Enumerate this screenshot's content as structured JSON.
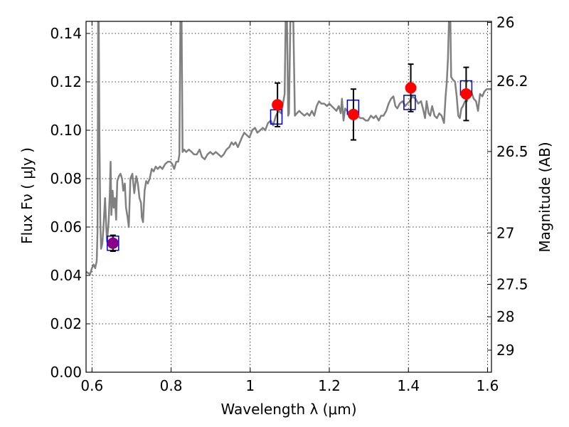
{
  "chart_data": {
    "type": "scatter",
    "xlabel": "Wavelength  λ (μm)",
    "ylabel": "Flux  Fν ( μJy )",
    "ylabel_right": "Magnitude (AB)",
    "xlim": [
      0.585,
      1.61
    ],
    "ylim": [
      0.0,
      0.145
    ],
    "grid": true,
    "x_ticks": [
      0.6,
      0.8,
      1.0,
      1.2,
      1.4,
      1.6
    ],
    "x_tick_labels": [
      "0.6",
      "0.8",
      "1",
      "1.2",
      "1.4",
      "1.6"
    ],
    "y_ticks": [
      0.0,
      0.02,
      0.04,
      0.06,
      0.08,
      0.1,
      0.12,
      0.14
    ],
    "y_tick_labels": [
      "0.00",
      "0.02",
      "0.04",
      "0.06",
      "0.08",
      "0.10",
      "0.12",
      "0.14"
    ],
    "right_ticks": [
      26,
      26.2,
      26.5,
      27,
      27.5,
      28,
      29
    ],
    "right_tick_labels": [
      "26",
      "26.2",
      "26.5",
      "27",
      "27.5",
      "28",
      "29"
    ],
    "series": [
      {
        "style": "line",
        "color": "#808080",
        "points": [
          [
            0.585,
            0.0415
          ],
          [
            0.595,
            0.0405
          ],
          [
            0.6,
            0.043
          ],
          [
            0.604,
            0.0445
          ],
          [
            0.608,
            0.043
          ],
          [
            0.612,
            0.046
          ],
          [
            0.614,
            0.058
          ],
          [
            0.6155,
            0.145
          ],
          [
            0.617,
            0.145
          ],
          [
            0.619,
            0.095
          ],
          [
            0.621,
            0.063
          ],
          [
            0.623,
            0.051
          ],
          [
            0.626,
            0.053
          ],
          [
            0.629,
            0.06
          ],
          [
            0.633,
            0.072
          ],
          [
            0.636,
            0.06
          ],
          [
            0.638,
            0.054
          ],
          [
            0.642,
            0.062
          ],
          [
            0.645,
            0.074
          ],
          [
            0.647,
            0.087
          ],
          [
            0.649,
            0.065
          ],
          [
            0.652,
            0.075
          ],
          [
            0.655,
            0.068
          ],
          [
            0.658,
            0.072
          ],
          [
            0.661,
            0.063
          ],
          [
            0.664,
            0.079
          ],
          [
            0.668,
            0.081
          ],
          [
            0.672,
            0.082
          ],
          [
            0.676,
            0.08
          ],
          [
            0.679,
            0.075
          ],
          [
            0.683,
            0.078
          ],
          [
            0.686,
            0.068
          ],
          [
            0.69,
            0.064
          ],
          [
            0.693,
            0.06
          ],
          [
            0.697,
            0.08
          ],
          [
            0.702,
            0.082
          ],
          [
            0.707,
            0.074
          ],
          [
            0.712,
            0.081
          ],
          [
            0.716,
            0.078
          ],
          [
            0.72,
            0.072
          ],
          [
            0.724,
            0.07
          ],
          [
            0.726,
            0.064
          ],
          [
            0.729,
            0.062
          ],
          [
            0.733,
            0.075
          ],
          [
            0.737,
            0.079
          ],
          [
            0.741,
            0.078
          ],
          [
            0.746,
            0.08
          ],
          [
            0.751,
            0.084
          ],
          [
            0.756,
            0.083
          ],
          [
            0.761,
            0.085
          ],
          [
            0.766,
            0.084
          ],
          [
            0.772,
            0.085
          ],
          [
            0.778,
            0.084
          ],
          [
            0.785,
            0.086
          ],
          [
            0.792,
            0.087
          ],
          [
            0.798,
            0.087
          ],
          [
            0.803,
            0.086
          ],
          [
            0.808,
            0.084
          ],
          [
            0.813,
            0.087
          ],
          [
            0.818,
            0.087
          ],
          [
            0.821,
            0.09
          ],
          [
            0.8235,
            0.145
          ],
          [
            0.8265,
            0.145
          ],
          [
            0.829,
            0.091
          ],
          [
            0.833,
            0.092
          ],
          [
            0.838,
            0.091
          ],
          [
            0.845,
            0.092
          ],
          [
            0.852,
            0.091
          ],
          [
            0.858,
            0.09
          ],
          [
            0.865,
            0.09
          ],
          [
            0.872,
            0.092
          ],
          [
            0.878,
            0.089
          ],
          [
            0.885,
            0.088
          ],
          [
            0.892,
            0.09
          ],
          [
            0.899,
            0.091
          ],
          [
            0.906,
            0.09
          ],
          [
            0.913,
            0.091
          ],
          [
            0.92,
            0.09
          ],
          [
            0.927,
            0.089
          ],
          [
            0.933,
            0.09
          ],
          [
            0.94,
            0.092
          ],
          [
            0.947,
            0.093
          ],
          [
            0.953,
            0.095
          ],
          [
            0.958,
            0.094
          ],
          [
            0.963,
            0.095
          ],
          [
            0.969,
            0.093
          ],
          [
            0.974,
            0.095
          ],
          [
            0.979,
            0.097
          ],
          [
            0.985,
            0.099
          ],
          [
            0.991,
            0.098
          ],
          [
            0.998,
            0.097
          ],
          [
            1.005,
            0.1
          ],
          [
            1.012,
            0.101
          ],
          [
            1.018,
            0.099
          ],
          [
            1.025,
            0.1
          ],
          [
            1.032,
            0.101
          ],
          [
            1.038,
            0.1
          ],
          [
            1.045,
            0.103
          ],
          [
            1.052,
            0.104
          ],
          [
            1.058,
            0.102
          ],
          [
            1.065,
            0.106
          ],
          [
            1.072,
            0.108
          ],
          [
            1.078,
            0.107
          ],
          [
            1.083,
            0.111
          ],
          [
            1.087,
            0.115
          ],
          [
            1.0895,
            0.145
          ],
          [
            1.093,
            0.145
          ],
          [
            1.096,
            0.106
          ],
          [
            1.098,
            0.107
          ],
          [
            1.1015,
            0.145
          ],
          [
            1.106,
            0.145
          ],
          [
            1.109,
            0.145
          ],
          [
            1.113,
            0.106
          ],
          [
            1.118,
            0.107
          ],
          [
            1.124,
            0.108
          ],
          [
            1.13,
            0.107
          ],
          [
            1.137,
            0.106
          ],
          [
            1.144,
            0.107
          ],
          [
            1.15,
            0.106
          ],
          [
            1.156,
            0.108
          ],
          [
            1.162,
            0.106
          ],
          [
            1.168,
            0.11
          ],
          [
            1.174,
            0.112
          ],
          [
            1.18,
            0.111
          ],
          [
            1.187,
            0.111
          ],
          [
            1.194,
            0.11
          ],
          [
            1.2,
            0.111
          ],
          [
            1.206,
            0.11
          ],
          [
            1.212,
            0.109
          ],
          [
            1.218,
            0.108
          ],
          [
            1.224,
            0.11
          ],
          [
            1.229,
            0.107
          ],
          [
            1.232,
            0.113
          ],
          [
            1.236,
            0.104
          ],
          [
            1.24,
            0.109
          ],
          [
            1.245,
            0.108
          ],
          [
            1.252,
            0.107
          ],
          [
            1.258,
            0.108
          ],
          [
            1.265,
            0.107
          ],
          [
            1.272,
            0.106
          ],
          [
            1.278,
            0.105
          ],
          [
            1.285,
            0.105
          ],
          [
            1.292,
            0.104
          ],
          [
            1.298,
            0.104
          ],
          [
            1.305,
            0.106
          ],
          [
            1.312,
            0.105
          ],
          [
            1.318,
            0.106
          ],
          [
            1.325,
            0.104
          ],
          [
            1.331,
            0.106
          ],
          [
            1.337,
            0.106
          ],
          [
            1.344,
            0.108
          ],
          [
            1.35,
            0.111
          ],
          [
            1.356,
            0.113
          ],
          [
            1.362,
            0.114
          ],
          [
            1.367,
            0.11
          ],
          [
            1.372,
            0.109
          ],
          [
            1.378,
            0.111
          ],
          [
            1.385,
            0.112
          ],
          [
            1.392,
            0.11
          ],
          [
            1.397,
            0.111
          ],
          [
            1.403,
            0.112
          ],
          [
            1.41,
            0.114
          ],
          [
            1.418,
            0.113
          ],
          [
            1.425,
            0.111
          ],
          [
            1.432,
            0.112
          ],
          [
            1.438,
            0.108
          ],
          [
            1.442,
            0.105
          ],
          [
            1.446,
            0.112
          ],
          [
            1.451,
            0.107
          ],
          [
            1.455,
            0.106
          ],
          [
            1.46,
            0.11
          ],
          [
            1.466,
            0.106
          ],
          [
            1.472,
            0.105
          ],
          [
            1.478,
            0.107
          ],
          [
            1.484,
            0.106
          ],
          [
            1.49,
            0.103
          ],
          [
            1.494,
            0.114
          ],
          [
            1.497,
            0.12
          ],
          [
            1.5,
            0.1295
          ],
          [
            1.5025,
            0.145
          ],
          [
            1.506,
            0.145
          ],
          [
            1.508,
            0.122
          ],
          [
            1.512,
            0.121
          ],
          [
            1.518,
            0.12
          ],
          [
            1.522,
            0.114
          ],
          [
            1.526,
            0.106
          ],
          [
            1.53,
            0.105
          ],
          [
            1.534,
            0.109
          ],
          [
            1.538,
            0.11
          ],
          [
            1.543,
            0.112
          ],
          [
            1.548,
            0.112
          ],
          [
            1.553,
            0.115
          ],
          [
            1.559,
            0.116
          ],
          [
            1.565,
            0.113
          ],
          [
            1.571,
            0.112
          ],
          [
            1.576,
            0.108
          ],
          [
            1.581,
            0.115
          ],
          [
            1.587,
            0.114
          ],
          [
            1.592,
            0.116
          ],
          [
            1.598,
            0.117
          ],
          [
            1.604,
            0.117
          ],
          [
            1.61,
            0.117
          ]
        ]
      },
      {
        "style": "square",
        "color": "#0000cc",
        "points": [
          [
            0.653,
            0.0533
          ],
          [
            1.066,
            0.1055
          ],
          [
            1.26,
            0.1095
          ],
          [
            1.403,
            0.1115
          ],
          [
            1.546,
            0.1175
          ]
        ]
      },
      {
        "style": "circle",
        "color": "#ff0000",
        "points": [
          [
            1.069,
            0.1105
          ],
          [
            1.261,
            0.1065
          ],
          [
            1.406,
            0.1175
          ],
          [
            1.546,
            0.115
          ]
        ],
        "errors": [
          0.009,
          0.0105,
          0.0098,
          0.011
        ]
      },
      {
        "style": "circle",
        "color": "#8b008b",
        "points": [
          [
            0.653,
            0.0533
          ]
        ],
        "errors": [
          0.0033
        ]
      }
    ]
  }
}
